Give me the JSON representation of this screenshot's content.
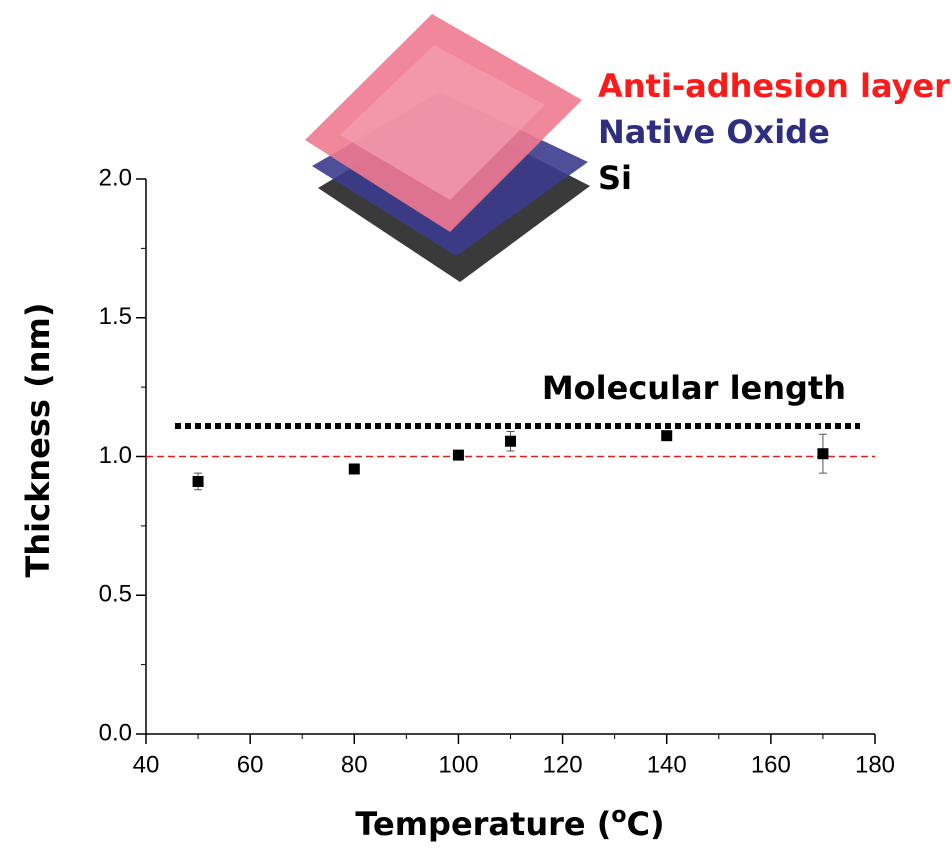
{
  "chart_data": {
    "type": "scatter",
    "xlabel": [
      "Temperature (",
      "o",
      "C)"
    ],
    "ylabel": "Thickness (nm)",
    "x": [
      50,
      80,
      100,
      110,
      140,
      170
    ],
    "series": [
      {
        "color": "#000000",
        "values": [
          0.91,
          0.955,
          1.005,
          1.055,
          1.075,
          1.01
        ],
        "errors": [
          0.03,
          0.01,
          0.01,
          0.035,
          0.01,
          0.07
        ]
      }
    ],
    "xlim": [
      40,
      180
    ],
    "xticks": [
      40,
      60,
      80,
      100,
      120,
      140,
      160,
      180
    ],
    "xminorticks": [
      50,
      70,
      90,
      110,
      130,
      150,
      170
    ],
    "ylim": [
      0,
      2
    ],
    "yticks": [
      {
        "value": 0,
        "label": "0.0"
      },
      {
        "value": 0.5,
        "label": "0.5"
      },
      {
        "value": 1,
        "label": "1.0"
      },
      {
        "value": 1.5,
        "label": "1.5"
      },
      {
        "value": 2,
        "label": "2.0"
      }
    ],
    "yminorticks": [
      0.25,
      0.75,
      1.25,
      1.75
    ],
    "hlines": [
      {
        "y": 1.11,
        "label": "Molecular length",
        "style": "dotted",
        "color": "#000000"
      },
      {
        "y": 1.0,
        "style": "dashed",
        "color": "#e02020"
      }
    ],
    "layers": [
      {
        "label": "Anti-adhesion layer",
        "color": "#ff1a1a"
      },
      {
        "label": "Native Oxide",
        "color": "#2e2e80"
      },
      {
        "label": "Si",
        "color": "#000000"
      }
    ]
  }
}
